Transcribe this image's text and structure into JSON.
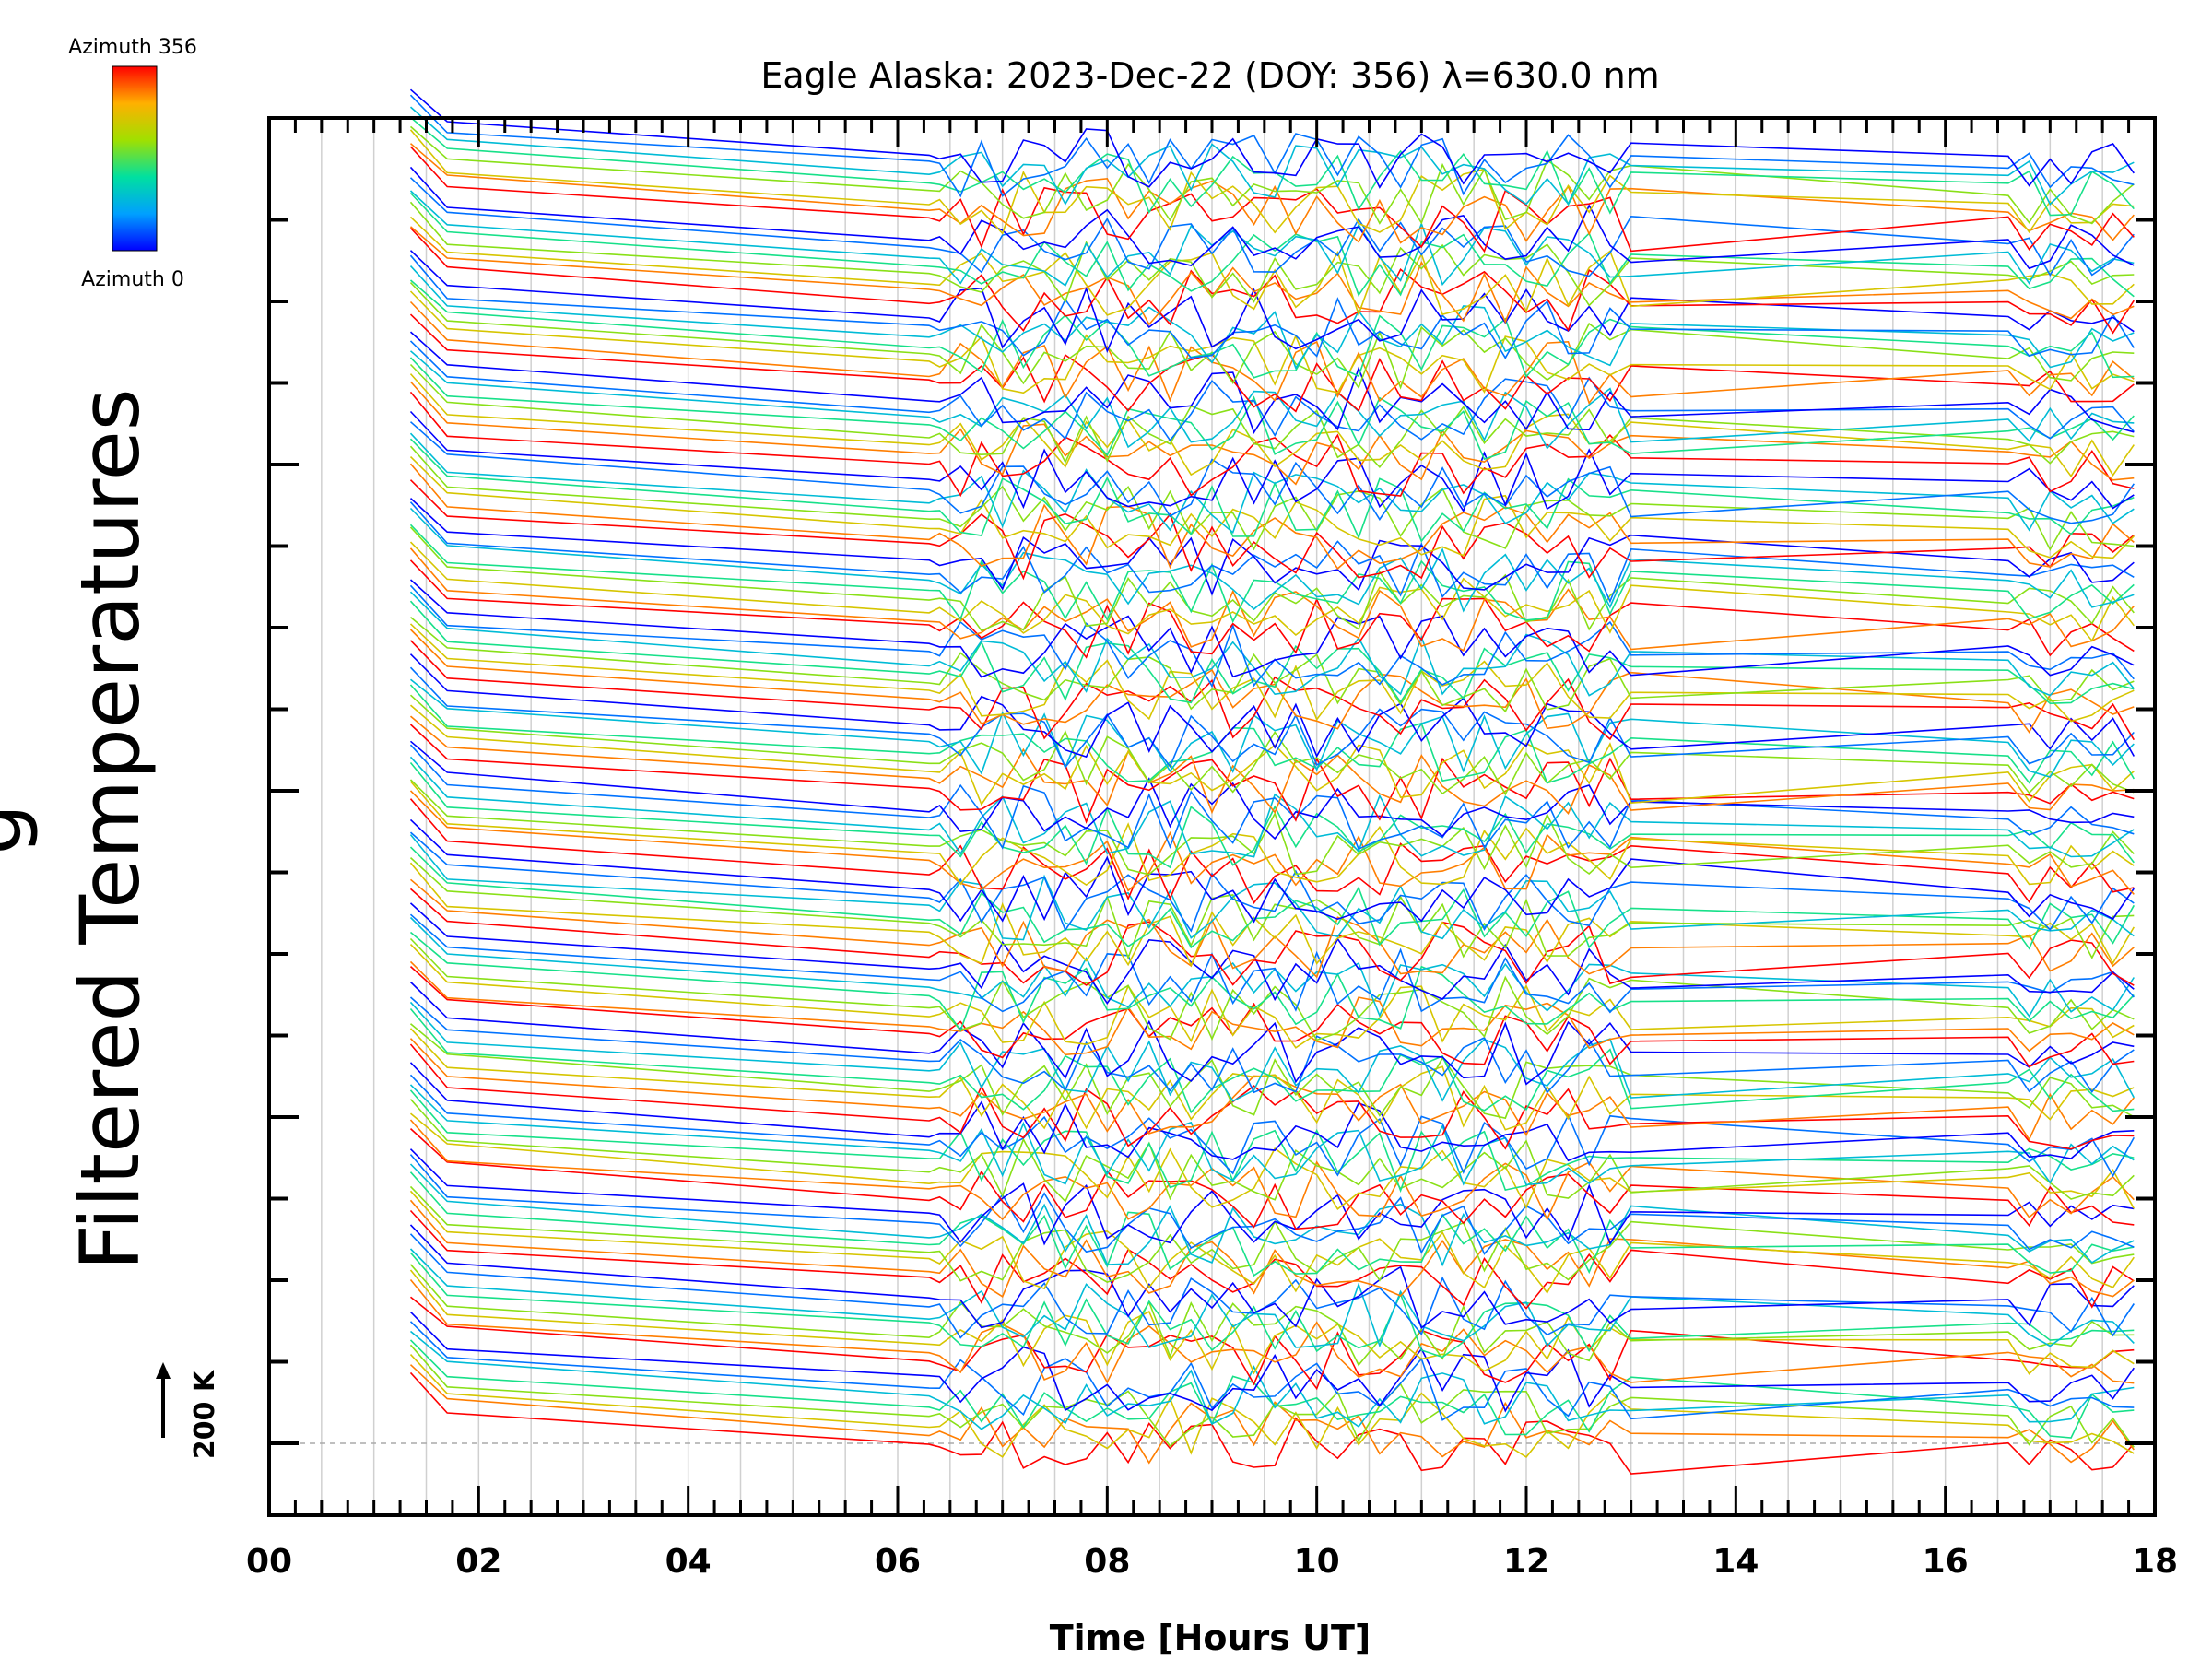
{
  "chart_data": {
    "type": "line",
    "title": "Eagle Alaska: 2023-Dec-22 (DOY: 356) λ=630.0 nm",
    "xlabel": "Time [Hours UT]",
    "ylabel": "Filtered Temperatures",
    "ylabel_partial": "g",
    "xlim": [
      0,
      18
    ],
    "x_ticks": [
      "00",
      "02",
      "04",
      "06",
      "08",
      "10",
      "12",
      "14",
      "16",
      "18"
    ],
    "x_tick_values": [
      0,
      2,
      4,
      6,
      8,
      10,
      12,
      14,
      16,
      18
    ],
    "y_offset_levels": 16,
    "scale_bar_label": "200 K",
    "scale_bar_value": 200,
    "legend": {
      "top_label": "Azimuth 356",
      "bottom_label": "Azimuth 0",
      "min_azimuth": 0,
      "max_azimuth": 356
    },
    "sample_times": [
      1.35,
      1.7,
      6.3,
      6.4,
      6.6,
      6.8,
      7.0,
      7.2,
      7.4,
      7.6,
      7.8,
      8.0,
      8.2,
      8.4,
      8.6,
      8.8,
      9.0,
      9.2,
      9.4,
      9.6,
      9.8,
      10.0,
      10.2,
      10.4,
      10.6,
      10.8,
      11.0,
      11.2,
      11.4,
      11.6,
      11.8,
      12.0,
      12.2,
      12.4,
      12.6,
      12.8,
      13.0,
      16.6,
      16.8,
      17.0,
      17.2,
      17.4,
      17.6,
      17.8
    ],
    "series_count": 128,
    "series_note": "stacked filtered temperature traces offset vertically, colored by azimuth (blue = 0, red = 356)"
  },
  "colors": {
    "background": "#ffffff",
    "axis": "#000000",
    "gridline": "#d0d0d0",
    "colorbar_top": "#ff0000",
    "colorbar_bottom": "#0000ff"
  }
}
